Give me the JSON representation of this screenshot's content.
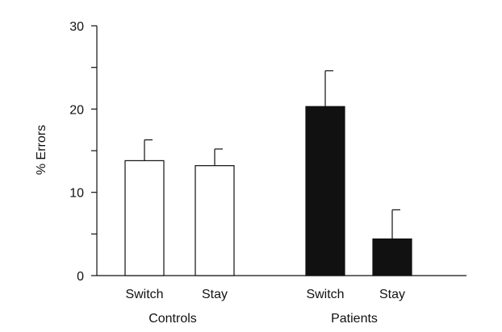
{
  "chart_data": {
    "type": "bar",
    "title": "",
    "xlabel": "",
    "ylabel": "% Errors",
    "ylim": [
      0,
      30
    ],
    "yticks": [
      0,
      10,
      20,
      30
    ],
    "y_minor_ticks": [
      5,
      15,
      25
    ],
    "grid": false,
    "legend": "none",
    "groups": [
      {
        "name": "Controls",
        "fill": "#ffffff",
        "bars": [
          {
            "category": "Switch",
            "value": 13.8,
            "error": 2.5
          },
          {
            "category": "Stay",
            "value": 13.2,
            "error": 2.0
          }
        ]
      },
      {
        "name": "Patients",
        "fill": "#111111",
        "bars": [
          {
            "category": "Switch",
            "value": 20.3,
            "error": 4.3
          },
          {
            "category": "Stay",
            "value": 4.4,
            "error": 3.5
          }
        ]
      }
    ]
  }
}
